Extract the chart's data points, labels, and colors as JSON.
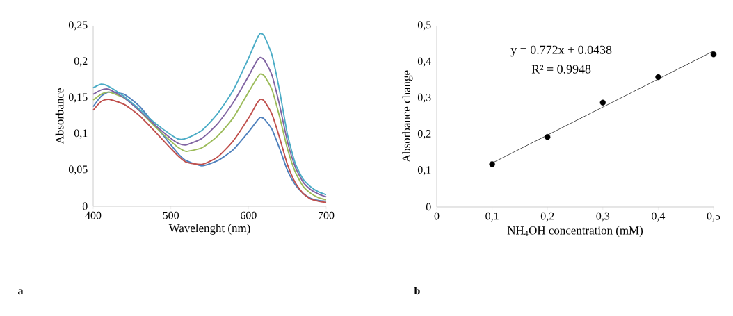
{
  "chart_data": [
    {
      "type": "line",
      "xlabel": "Wavelenght (nm)",
      "ylabel": "Absorbance",
      "annotations": [
        "a"
      ],
      "xlim": [
        400,
        700
      ],
      "xticks": [
        400,
        500,
        600,
        700
      ],
      "ylim": [
        0,
        0.25
      ],
      "yticks": [
        0,
        {
          "value": 0.05,
          "label": "0,05"
        },
        {
          "value": 0.1,
          "label": "0,1"
        },
        {
          "value": 0.15,
          "label": "0,15"
        },
        {
          "value": 0.2,
          "label": "0,2"
        },
        {
          "value": 0.25,
          "label": "0,25"
        }
      ],
      "x": [
        400,
        410,
        420,
        440,
        460,
        480,
        500,
        510,
        520,
        540,
        560,
        580,
        600,
        610,
        615,
        620,
        630,
        640,
        650,
        660,
        670,
        680,
        690,
        700
      ],
      "series": [
        {
          "color": "#4f81bd",
          "values": [
            0.138,
            0.152,
            0.158,
            0.155,
            0.138,
            0.112,
            0.085,
            0.072,
            0.063,
            0.056,
            0.063,
            0.078,
            0.103,
            0.117,
            0.123,
            0.121,
            0.107,
            0.08,
            0.05,
            0.03,
            0.018,
            0.011,
            0.008,
            0.007
          ]
        },
        {
          "color": "#c0504d",
          "values": [
            0.133,
            0.145,
            0.148,
            0.141,
            0.125,
            0.103,
            0.08,
            0.069,
            0.061,
            0.058,
            0.068,
            0.09,
            0.122,
            0.141,
            0.148,
            0.146,
            0.128,
            0.095,
            0.058,
            0.033,
            0.018,
            0.01,
            0.007,
            0.005
          ]
        },
        {
          "color": "#9bbb59",
          "values": [
            0.147,
            0.155,
            0.158,
            0.15,
            0.132,
            0.11,
            0.09,
            0.081,
            0.076,
            0.081,
            0.097,
            0.122,
            0.158,
            0.176,
            0.183,
            0.181,
            0.162,
            0.124,
            0.08,
            0.048,
            0.028,
            0.018,
            0.012,
            0.009
          ]
        },
        {
          "color": "#8064a2",
          "values": [
            0.155,
            0.161,
            0.162,
            0.15,
            0.132,
            0.112,
            0.094,
            0.087,
            0.085,
            0.094,
            0.114,
            0.143,
            0.18,
            0.2,
            0.206,
            0.203,
            0.182,
            0.14,
            0.09,
            0.055,
            0.034,
            0.023,
            0.017,
            0.013
          ]
        },
        {
          "color": "#4bacc6",
          "values": [
            0.164,
            0.169,
            0.166,
            0.152,
            0.134,
            0.115,
            0.099,
            0.093,
            0.094,
            0.105,
            0.128,
            0.16,
            0.205,
            0.23,
            0.239,
            0.236,
            0.21,
            0.16,
            0.1,
            0.06,
            0.038,
            0.027,
            0.02,
            0.016
          ]
        }
      ]
    },
    {
      "type": "scatter",
      "xlabel": "NH$_{4}$OH  concentration (mM)",
      "ylabel": "Absorbance change",
      "annotations": [
        "y = 0.772x + 0.0438",
        "R² = 0.9948",
        "b"
      ],
      "xlim": [
        0,
        0.5
      ],
      "xticks": [
        0,
        {
          "value": 0.1,
          "label": "0,1"
        },
        {
          "value": 0.2,
          "label": "0,2"
        },
        {
          "value": 0.3,
          "label": "0,3"
        },
        {
          "value": 0.4,
          "label": "0,4"
        },
        {
          "value": 0.5,
          "label": "0,5"
        }
      ],
      "ylim": [
        0,
        0.5
      ],
      "yticks": [
        0,
        {
          "value": 0.1,
          "label": "0,1"
        },
        {
          "value": 0.2,
          "label": "0,2"
        },
        {
          "value": 0.3,
          "label": "0,3"
        },
        {
          "value": 0.4,
          "label": "0,4"
        },
        {
          "value": 0.5,
          "label": "0,5"
        }
      ],
      "series": [
        {
          "color": "#000000",
          "marker": "circle",
          "x": [
            0.1,
            0.2,
            0.3,
            0.4,
            0.5
          ],
          "values": [
            0.118,
            0.193,
            0.288,
            0.358,
            0.421
          ]
        },
        {
          "type": "line",
          "color": "#000000",
          "x": [
            0.1,
            0.5
          ],
          "values": [
            0.121,
            0.43
          ]
        }
      ]
    }
  ]
}
